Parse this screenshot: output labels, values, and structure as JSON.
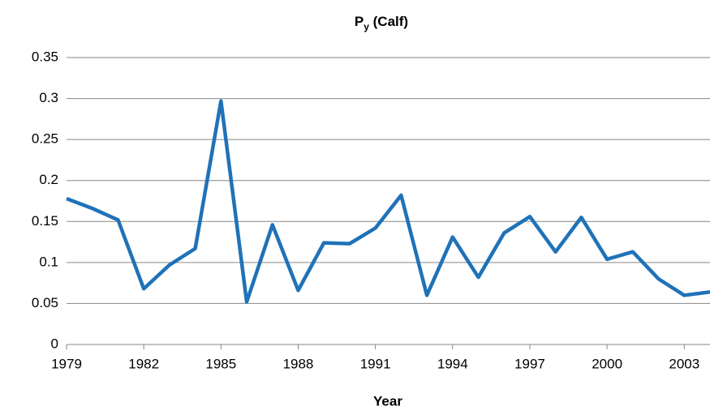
{
  "chart_data": {
    "type": "line",
    "title": {
      "text": "P",
      "subscript": "y",
      "suffix": " (Calf)"
    },
    "x_label": "Year",
    "x": [
      1979,
      1980,
      1981,
      1982,
      1983,
      1984,
      1985,
      1986,
      1987,
      1988,
      1989,
      1990,
      1991,
      1992,
      1993,
      1994,
      1995,
      1996,
      1997,
      1998,
      1999,
      2000,
      2001,
      2002,
      2003,
      2004
    ],
    "series": [
      {
        "name": "Py (Calf)",
        "color": "#1f72b8",
        "values": [
          0.178,
          0.166,
          0.152,
          0.068,
          0.097,
          0.117,
          0.297,
          0.052,
          0.146,
          0.066,
          0.124,
          0.123,
          0.142,
          0.182,
          0.06,
          0.131,
          0.082,
          0.136,
          0.156,
          0.113,
          0.155,
          0.104,
          0.113,
          0.08,
          0.06,
          0.064
        ]
      }
    ],
    "xlim": [
      1979,
      2004
    ],
    "xticks": [
      1979,
      1982,
      1985,
      1988,
      1991,
      1994,
      1997,
      2000,
      2003
    ],
    "ylim": [
      0,
      0.35
    ],
    "yticks": [
      0,
      0.05,
      0.1,
      0.15,
      0.2,
      0.25,
      0.3,
      0.35
    ],
    "grid": true
  }
}
